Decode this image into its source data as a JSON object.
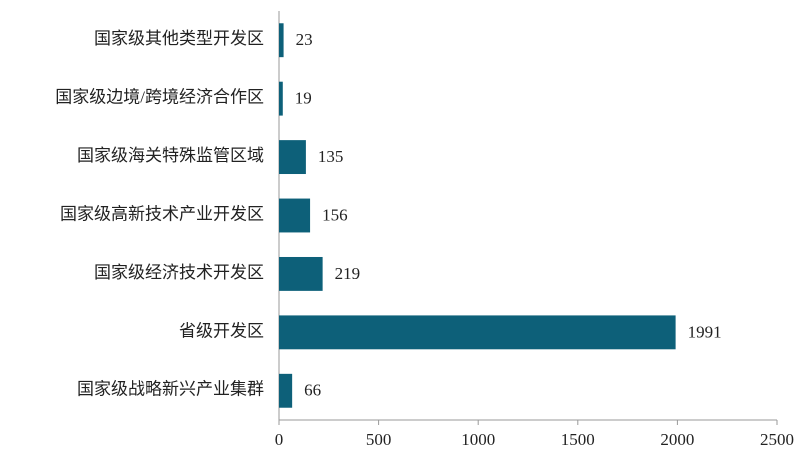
{
  "chart_data": {
    "type": "bar",
    "categories": [
      "国家级其他类型开发区",
      "国家级边境/跨境经济合作区",
      "国家级海关特殊监管区域",
      "国家级高新技术产业开发区",
      "国家级经济技术开发区",
      "省级开发区",
      "国家级战略新兴产业集群"
    ],
    "values": [
      23,
      19,
      135,
      156,
      219,
      1991,
      66
    ],
    "color": "#0d6079",
    "xlim": [
      0,
      2500
    ],
    "xticks": [
      0,
      500,
      1000,
      1500,
      2000,
      2500
    ]
  }
}
